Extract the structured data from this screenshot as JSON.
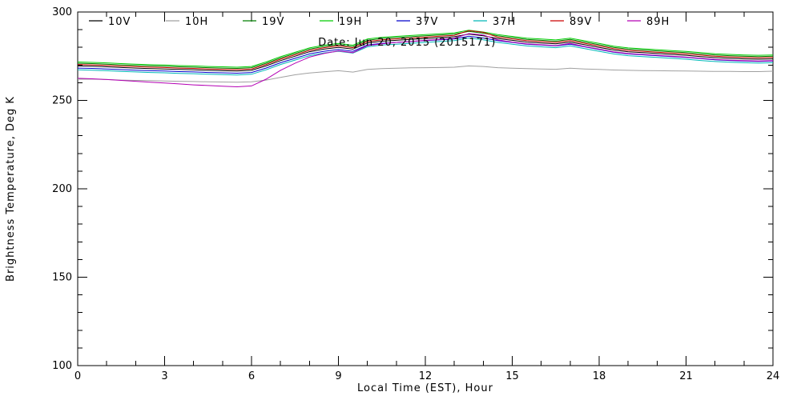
{
  "chart_data": {
    "type": "line",
    "title": "",
    "xlabel": "Local Time (EST), Hour",
    "ylabel": "Brightness Temperature, Deg K",
    "xlim": [
      0,
      24
    ],
    "ylim": [
      100,
      300
    ],
    "xticks": [
      0,
      3,
      6,
      9,
      12,
      15,
      18,
      21,
      24
    ],
    "yticks": [
      100,
      150,
      200,
      250,
      300
    ],
    "x_minor_step": 1,
    "y_minor_step": 10,
    "grid": false,
    "legend_position": "top-inside",
    "annotation": {
      "text": "Date: Jun 20, 2015 (2015171)",
      "x": 8.3,
      "y": 281.0
    },
    "x": [
      0,
      0.5,
      1,
      1.5,
      2,
      2.5,
      3,
      3.5,
      4,
      4.5,
      5,
      5.5,
      6,
      6.5,
      7,
      7.5,
      8,
      8.5,
      9,
      9.5,
      10,
      10.5,
      11,
      11.5,
      12,
      12.5,
      13,
      13.5,
      14,
      14.5,
      15,
      15.5,
      16,
      16.5,
      17,
      17.5,
      18,
      18.5,
      19,
      19.5,
      20,
      20.5,
      21,
      21.5,
      22,
      22.5,
      23,
      23.5,
      24
    ],
    "series": [
      {
        "name": "10V",
        "color": "#000000",
        "values": [
          269.5,
          269.3,
          269.0,
          268.6,
          268.3,
          268.0,
          267.8,
          267.5,
          267.3,
          267.0,
          266.8,
          266.6,
          267.0,
          269.5,
          272.5,
          275.0,
          277.5,
          279.0,
          280.0,
          279.0,
          282.5,
          283.5,
          284.0,
          284.5,
          285.0,
          285.5,
          286.0,
          287.5,
          286.5,
          285.0,
          284.0,
          283.0,
          282.5,
          282.0,
          283.0,
          281.5,
          280.0,
          278.5,
          277.5,
          277.0,
          276.5,
          276.0,
          275.5,
          274.8,
          274.2,
          273.8,
          273.5,
          273.3,
          273.5
        ]
      },
      {
        "name": "10H",
        "color": "#a0a0a0",
        "values": [
          262.0,
          262.0,
          261.8,
          261.5,
          261.3,
          261.2,
          261.0,
          260.8,
          260.7,
          260.5,
          260.4,
          260.3,
          260.5,
          261.5,
          263.0,
          264.5,
          265.5,
          266.2,
          266.8,
          266.0,
          267.5,
          268.0,
          268.2,
          268.4,
          268.5,
          268.6,
          268.8,
          269.5,
          269.2,
          268.5,
          268.2,
          268.0,
          267.8,
          267.6,
          268.2,
          267.8,
          267.5,
          267.2,
          267.0,
          266.9,
          266.8,
          266.7,
          266.6,
          266.5,
          266.4,
          266.4,
          266.3,
          266.3,
          266.5
        ]
      },
      {
        "name": "19V",
        "color": "#007f00",
        "values": [
          271.0,
          270.8,
          270.5,
          270.1,
          269.8,
          269.5,
          269.3,
          269.0,
          268.8,
          268.5,
          268.3,
          268.1,
          268.5,
          271.0,
          274.0,
          276.5,
          279.0,
          280.5,
          281.5,
          280.5,
          284.0,
          285.0,
          285.5,
          286.0,
          286.5,
          287.0,
          287.5,
          289.0,
          288.0,
          286.5,
          285.5,
          284.5,
          284.0,
          283.5,
          284.5,
          283.0,
          281.5,
          280.0,
          279.0,
          278.5,
          278.0,
          277.5,
          277.0,
          276.3,
          275.7,
          275.3,
          275.0,
          274.8,
          275.0
        ]
      },
      {
        "name": "19H",
        "color": "#00cc00",
        "values": [
          271.7,
          271.5,
          271.2,
          270.8,
          270.5,
          270.2,
          270.0,
          269.7,
          269.5,
          269.2,
          269.0,
          268.8,
          269.2,
          271.7,
          274.7,
          277.2,
          279.7,
          281.2,
          282.2,
          281.2,
          284.7,
          285.7,
          286.2,
          286.7,
          287.2,
          287.7,
          288.2,
          289.7,
          288.7,
          287.2,
          286.2,
          285.2,
          284.7,
          284.2,
          285.2,
          283.7,
          282.2,
          280.7,
          279.7,
          279.2,
          278.7,
          278.2,
          277.7,
          277.0,
          276.4,
          276.0,
          275.7,
          275.5,
          275.7
        ]
      },
      {
        "name": "37V",
        "color": "#0000cc",
        "values": [
          268.3,
          268.1,
          267.8,
          267.4,
          267.1,
          266.8,
          266.6,
          266.3,
          266.1,
          265.8,
          265.6,
          265.4,
          265.8,
          268.3,
          271.3,
          273.8,
          276.3,
          277.8,
          278.8,
          277.8,
          281.3,
          282.3,
          282.8,
          283.3,
          283.8,
          284.3,
          284.8,
          286.3,
          285.3,
          283.8,
          282.8,
          281.8,
          281.3,
          280.8,
          281.8,
          280.3,
          278.8,
          277.3,
          276.3,
          275.8,
          275.3,
          274.8,
          274.3,
          273.6,
          273.0,
          272.6,
          272.3,
          272.1,
          272.3
        ]
      },
      {
        "name": "37H",
        "color": "#00b8b8",
        "values": [
          267.3,
          267.1,
          266.8,
          266.4,
          266.1,
          265.8,
          265.6,
          265.3,
          265.1,
          264.8,
          264.6,
          264.4,
          264.8,
          267.3,
          270.3,
          272.8,
          275.3,
          276.8,
          277.8,
          276.8,
          280.3,
          281.3,
          281.8,
          282.3,
          282.8,
          283.3,
          283.8,
          285.3,
          284.3,
          282.8,
          281.8,
          280.8,
          280.3,
          279.8,
          280.8,
          279.3,
          277.8,
          276.3,
          275.3,
          274.8,
          274.3,
          273.8,
          273.3,
          272.6,
          272.0,
          271.6,
          271.3,
          271.1,
          271.3
        ]
      },
      {
        "name": "89V",
        "color": "#cc0000",
        "values": [
          270.3,
          270.1,
          269.8,
          269.4,
          269.1,
          268.8,
          268.6,
          268.3,
          268.1,
          267.8,
          267.6,
          267.4,
          267.8,
          270.3,
          273.3,
          275.8,
          278.3,
          279.8,
          280.8,
          279.8,
          283.3,
          284.3,
          284.8,
          285.3,
          285.8,
          286.3,
          286.8,
          289.5,
          288.5,
          285.8,
          284.8,
          283.8,
          283.3,
          282.8,
          283.8,
          282.3,
          280.8,
          279.3,
          278.3,
          277.8,
          277.3,
          276.8,
          276.3,
          275.6,
          275.0,
          274.6,
          274.3,
          274.1,
          274.3
        ]
      },
      {
        "name": "89H",
        "color": "#b400b4",
        "values": [
          262.5,
          262.2,
          261.8,
          261.3,
          260.8,
          260.3,
          259.8,
          259.3,
          258.8,
          258.4,
          258.0,
          257.7,
          258.2,
          262.0,
          267.0,
          271.0,
          274.5,
          276.5,
          278.0,
          277.0,
          281.0,
          282.0,
          282.8,
          283.3,
          284.0,
          284.5,
          285.2,
          287.8,
          287.0,
          284.2,
          283.0,
          282.0,
          281.5,
          281.0,
          282.2,
          280.5,
          279.0,
          277.5,
          276.5,
          276.0,
          275.5,
          275.0,
          274.5,
          273.8,
          273.2,
          272.8,
          272.5,
          272.3,
          272.5
        ]
      }
    ],
    "legend": [
      {
        "label": "10V",
        "color": "#000000"
      },
      {
        "label": "10H",
        "color": "#a0a0a0"
      },
      {
        "label": "19V",
        "color": "#007f00"
      },
      {
        "label": "19H",
        "color": "#00cc00"
      },
      {
        "label": "37V",
        "color": "#0000cc"
      },
      {
        "label": "37H",
        "color": "#00b8b8"
      },
      {
        "label": "89V",
        "color": "#cc0000"
      },
      {
        "label": "89H",
        "color": "#b400b4"
      }
    ],
    "axis_color": "#000000",
    "background_color": "#ffffff"
  }
}
